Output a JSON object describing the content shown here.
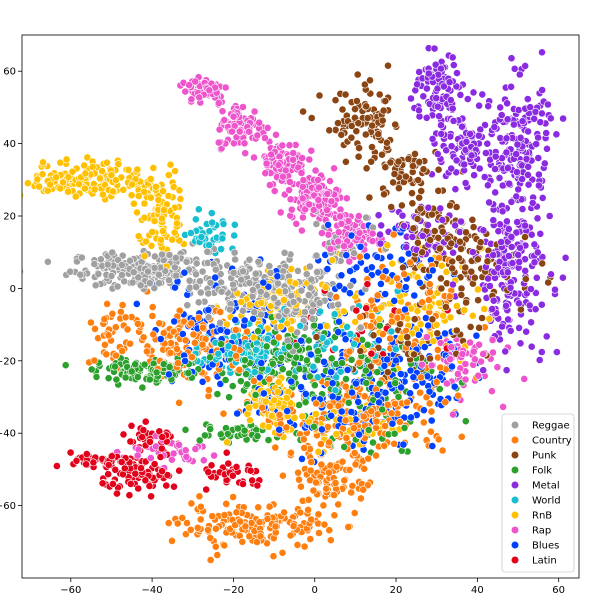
{
  "chart_data": {
    "type": "scatter",
    "title": "",
    "xlabel": "",
    "ylabel": "",
    "xlim": [
      -72,
      65
    ],
    "ylim": [
      -80,
      70
    ],
    "x_ticks": [
      -60,
      -40,
      -20,
      0,
      20,
      40,
      60
    ],
    "y_ticks": [
      60,
      40,
      20,
      0,
      -20,
      -40,
      -60
    ],
    "grid": false,
    "legend_position": "bottom-right",
    "series": [
      {
        "name": "Reggae",
        "color": "#a0a0a0",
        "clusters": [
          {
            "cx": -40,
            "cy": 5,
            "sx": 10,
            "sy": 2.5,
            "n": 220
          },
          {
            "cx": -15,
            "cy": 0,
            "sx": 8,
            "sy": 4,
            "n": 160
          },
          {
            "cx": -5,
            "cy": -5,
            "sx": 6,
            "sy": 5,
            "n": 80
          },
          {
            "cx": 5,
            "cy": 10,
            "sx": 5,
            "sy": 5,
            "n": 40
          }
        ]
      },
      {
        "name": "Country",
        "color": "#ff7f0e",
        "clusters": [
          {
            "cx": -15,
            "cy": -66,
            "sx": 9,
            "sy": 3,
            "n": 150
          },
          {
            "cx": 3,
            "cy": -53,
            "sx": 5,
            "sy": 5,
            "n": 100
          },
          {
            "cx": -30,
            "cy": -15,
            "sx": 10,
            "sy": 5,
            "n": 160
          },
          {
            "cx": 10,
            "cy": -35,
            "sx": 12,
            "sy": 6,
            "n": 200
          },
          {
            "cx": 20,
            "cy": -10,
            "sx": 8,
            "sy": 10,
            "n": 120
          },
          {
            "cx": -50,
            "cy": -12,
            "sx": 2,
            "sy": 4,
            "n": 30
          }
        ]
      },
      {
        "name": "Punk",
        "color": "#8b4513",
        "clusters": [
          {
            "cx": 12,
            "cy": 45,
            "sx": 5,
            "sy": 5,
            "n": 90
          },
          {
            "cx": 22,
            "cy": 32,
            "sx": 4,
            "sy": 4,
            "n": 60
          },
          {
            "cx": 30,
            "cy": 15,
            "sx": 5,
            "sy": 5,
            "n": 80
          },
          {
            "cx": 40,
            "cy": 5,
            "sx": 8,
            "sy": 6,
            "n": 70
          },
          {
            "cx": 25,
            "cy": -15,
            "sx": 8,
            "sy": 6,
            "n": 60
          }
        ]
      },
      {
        "name": "Folk",
        "color": "#2ca02c",
        "clusters": [
          {
            "cx": -40,
            "cy": -23,
            "sx": 7,
            "sy": 1.5,
            "n": 120
          },
          {
            "cx": -10,
            "cy": -20,
            "sx": 8,
            "sy": 5,
            "n": 120
          },
          {
            "cx": 10,
            "cy": -25,
            "sx": 10,
            "sy": 10,
            "n": 120
          },
          {
            "cx": -20,
            "cy": -40,
            "sx": 6,
            "sy": 1.5,
            "n": 40
          }
        ]
      },
      {
        "name": "Metal",
        "color": "#8a2be2",
        "clusters": [
          {
            "cx": 30,
            "cy": 55,
            "sx": 3,
            "sy": 5,
            "n": 90
          },
          {
            "cx": 38,
            "cy": 40,
            "sx": 4,
            "sy": 6,
            "n": 110
          },
          {
            "cx": 50,
            "cy": 38,
            "sx": 4,
            "sy": 10,
            "n": 180
          },
          {
            "cx": 48,
            "cy": 5,
            "sx": 5,
            "sy": 10,
            "n": 200
          },
          {
            "cx": 25,
            "cy": 15,
            "sx": 5,
            "sy": 4,
            "n": 60
          }
        ]
      },
      {
        "name": "World",
        "color": "#17becf",
        "clusters": [
          {
            "cx": -18,
            "cy": -17,
            "sx": 5,
            "sy": 3,
            "n": 90
          },
          {
            "cx": -25,
            "cy": 15,
            "sx": 3,
            "sy": 3,
            "n": 40
          },
          {
            "cx": 5,
            "cy": -15,
            "sx": 8,
            "sy": 6,
            "n": 60
          }
        ]
      },
      {
        "name": "RnB",
        "color": "#ffc000",
        "clusters": [
          {
            "cx": -55,
            "cy": 30,
            "sx": 8,
            "sy": 2.5,
            "n": 170
          },
          {
            "cx": -38,
            "cy": 20,
            "sx": 3,
            "sy": 6,
            "n": 90
          },
          {
            "cx": -10,
            "cy": -32,
            "sx": 3,
            "sy": 3,
            "n": 90
          },
          {
            "cx": -10,
            "cy": -5,
            "sx": 6,
            "sy": 5,
            "n": 90
          },
          {
            "cx": 25,
            "cy": -5,
            "sx": 8,
            "sy": 8,
            "n": 80
          },
          {
            "cx": 5,
            "cy": -38,
            "sx": 8,
            "sy": 3,
            "n": 60
          }
        ]
      },
      {
        "name": "Rap",
        "color": "#ee55cc",
        "clusters": [
          {
            "cx": -27,
            "cy": 55,
            "sx": 3,
            "sy": 2,
            "n": 60
          },
          {
            "cx": -18,
            "cy": 45,
            "sx": 3,
            "sy": 3,
            "n": 90
          },
          {
            "cx": -8,
            "cy": 35,
            "sx": 3,
            "sy": 3,
            "n": 100
          },
          {
            "cx": 0,
            "cy": 25,
            "sx": 3,
            "sy": 3,
            "n": 120
          },
          {
            "cx": 8,
            "cy": 15,
            "sx": 3,
            "sy": 3,
            "n": 90
          },
          {
            "cx": 35,
            "cy": -20,
            "sx": 5,
            "sy": 5,
            "n": 60
          },
          {
            "cx": -35,
            "cy": -45,
            "sx": 6,
            "sy": 2,
            "n": 40
          }
        ]
      },
      {
        "name": "Blues",
        "color": "#0040ff",
        "clusters": [
          {
            "cx": 5,
            "cy": -30,
            "sx": 10,
            "sy": 8,
            "n": 170
          },
          {
            "cx": -20,
            "cy": -10,
            "sx": 10,
            "sy": 8,
            "n": 130
          },
          {
            "cx": 25,
            "cy": -20,
            "sx": 6,
            "sy": 8,
            "n": 90
          },
          {
            "cx": 15,
            "cy": 5,
            "sx": 8,
            "sy": 6,
            "n": 70
          }
        ]
      },
      {
        "name": "Latin",
        "color": "#e3001b",
        "clusters": [
          {
            "cx": -52,
            "cy": -48,
            "sx": 4,
            "sy": 1.2,
            "n": 50
          },
          {
            "cx": -42,
            "cy": -52,
            "sx": 5,
            "sy": 2,
            "n": 70
          },
          {
            "cx": -20,
            "cy": -52,
            "sx": 4,
            "sy": 2,
            "n": 40
          },
          {
            "cx": -40,
            "cy": -42,
            "sx": 4,
            "sy": 2,
            "n": 40
          },
          {
            "cx": 10,
            "cy": -10,
            "sx": 10,
            "sy": 10,
            "n": 20
          }
        ]
      }
    ]
  }
}
